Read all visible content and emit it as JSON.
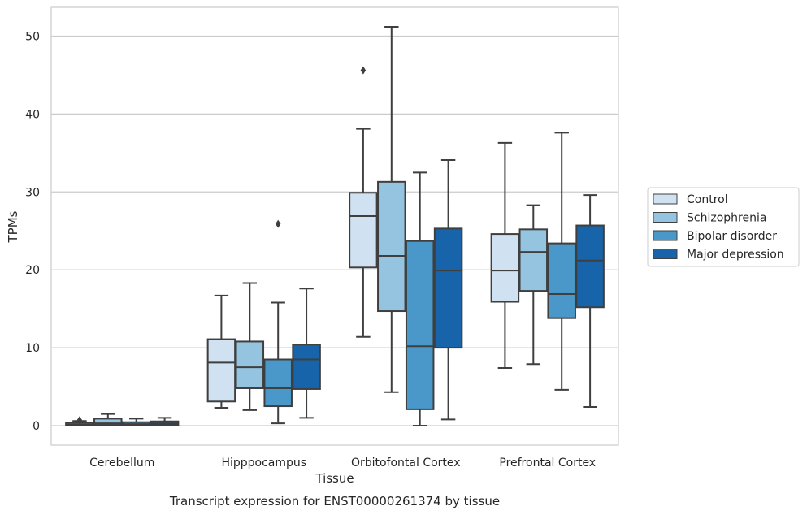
{
  "caption": "Transcript expression for ENST00000261374 by tissue",
  "chart_data": {
    "type": "boxplot",
    "xlabel": "Tissue",
    "ylabel": "TPMs",
    "ylim": [
      -2.5,
      53.7
    ],
    "yticks": [
      0,
      10,
      20,
      30,
      40,
      50
    ],
    "grid": true,
    "legend_position": "right",
    "categories": [
      "Cerebellum",
      "Hipppocampus",
      "Orbitofontal Cortex",
      "Prefrontal Cortex"
    ],
    "series": [
      {
        "name": "Control",
        "color": "#d0e1f2",
        "boxes": [
          {
            "whislo": 0.0,
            "q1": 0.05,
            "med": 0.2,
            "q3": 0.4,
            "whishi": 0.6,
            "fliers": [
              0.7
            ]
          },
          {
            "whislo": 2.3,
            "q1": 3.1,
            "med": 8.1,
            "q3": 11.1,
            "whishi": 16.7,
            "fliers": []
          },
          {
            "whislo": 11.4,
            "q1": 20.3,
            "med": 26.9,
            "q3": 29.9,
            "whishi": 38.1,
            "fliers": [
              45.6
            ]
          },
          {
            "whislo": 7.4,
            "q1": 15.9,
            "med": 19.9,
            "q3": 24.6,
            "whishi": 36.3,
            "fliers": []
          }
        ]
      },
      {
        "name": "Schizophrenia",
        "color": "#94c4df",
        "boxes": [
          {
            "whislo": 0.0,
            "q1": 0.1,
            "med": 0.3,
            "q3": 0.9,
            "whishi": 1.5,
            "fliers": []
          },
          {
            "whislo": 2.0,
            "q1": 4.8,
            "med": 7.5,
            "q3": 10.8,
            "whishi": 18.3,
            "fliers": []
          },
          {
            "whislo": 4.3,
            "q1": 14.7,
            "med": 21.8,
            "q3": 31.3,
            "whishi": 51.2,
            "fliers": []
          },
          {
            "whislo": 7.9,
            "q1": 17.3,
            "med": 22.3,
            "q3": 25.2,
            "whishi": 28.3,
            "fliers": []
          }
        ]
      },
      {
        "name": "Bipolar disorder",
        "color": "#4a98c9",
        "boxes": [
          {
            "whislo": 0.0,
            "q1": 0.05,
            "med": 0.2,
            "q3": 0.45,
            "whishi": 0.9,
            "fliers": []
          },
          {
            "whislo": 0.3,
            "q1": 2.5,
            "med": 4.8,
            "q3": 8.5,
            "whishi": 15.8,
            "fliers": [
              25.9
            ]
          },
          {
            "whislo": 0.0,
            "q1": 2.1,
            "med": 10.2,
            "q3": 23.7,
            "whishi": 32.5,
            "fliers": []
          },
          {
            "whislo": 4.6,
            "q1": 13.8,
            "med": 16.9,
            "q3": 23.4,
            "whishi": 37.6,
            "fliers": []
          }
        ]
      },
      {
        "name": "Major depression",
        "color": "#1764ab",
        "boxes": [
          {
            "whislo": 0.0,
            "q1": 0.1,
            "med": 0.3,
            "q3": 0.55,
            "whishi": 1.0,
            "fliers": []
          },
          {
            "whislo": 1.0,
            "q1": 4.7,
            "med": 8.5,
            "q3": 10.4,
            "whishi": 17.6,
            "fliers": []
          },
          {
            "whislo": 0.8,
            "q1": 10.0,
            "med": 19.9,
            "q3": 25.3,
            "whishi": 34.1,
            "fliers": []
          },
          {
            "whislo": 2.4,
            "q1": 15.2,
            "med": 21.2,
            "q3": 25.7,
            "whishi": 29.6,
            "fliers": []
          }
        ]
      }
    ]
  }
}
